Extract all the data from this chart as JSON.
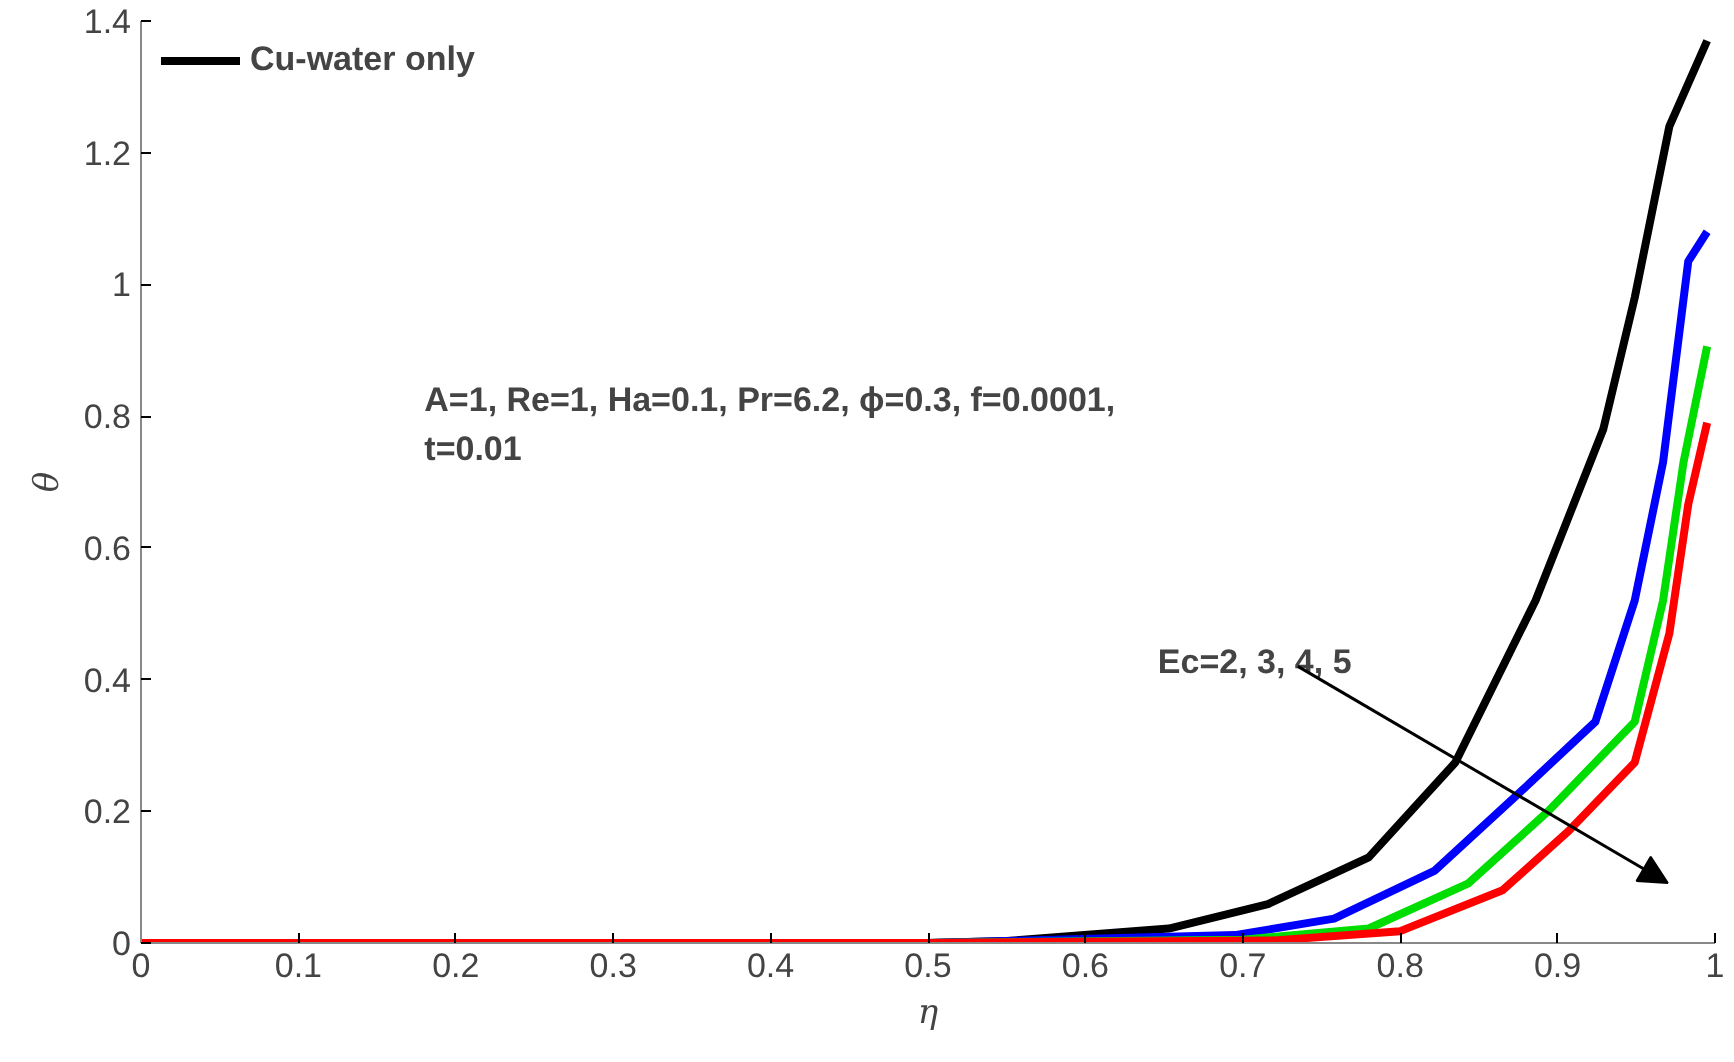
{
  "chart_data": {
    "type": "line",
    "xlabel": "η",
    "ylabel": "θ",
    "xlim": [
      0,
      1
    ],
    "ylim": [
      0,
      1.4
    ],
    "xticks": [
      0,
      0.1,
      0.2,
      0.3,
      0.4,
      0.5,
      0.6,
      0.7,
      0.8,
      0.9,
      1
    ],
    "yticks": [
      0,
      0.2,
      0.4,
      0.6,
      0.8,
      1,
      1.2,
      1.4
    ],
    "grid": false,
    "legend": "top left",
    "marker": "none",
    "line_style": "solid",
    "annotations": [
      "A=1, Re=1, Ha=0.1, Pr=6.2,  ϕ=0.3, f=0.0001,\nt=0.01",
      "Ec=2, 3, 4, 5"
    ],
    "series": [
      {
        "name": "Cu-water only",
        "color": "#000000",
        "x": [
          0,
          0.5,
          0.55,
          0.653,
          0.716,
          0.78,
          0.835,
          0.886,
          0.929,
          0.949,
          0.971,
          0.995
        ],
        "values": [
          0,
          0,
          0.003,
          0.022,
          0.059,
          0.13,
          0.274,
          0.52,
          0.78,
          0.98,
          1.24,
          1.37
        ]
      },
      {
        "color": "#0000ff",
        "x": [
          0,
          0.5,
          0.695,
          0.758,
          0.822,
          0.873,
          0.924,
          0.949,
          0.967,
          0.983,
          0.995
        ],
        "values": [
          0,
          0,
          0.012,
          0.037,
          0.11,
          0.222,
          0.336,
          0.52,
          0.73,
          1.035,
          1.08
        ]
      },
      {
        "color": "#00dd00",
        "x": [
          0,
          0.5,
          0.7,
          0.78,
          0.843,
          0.894,
          0.949,
          0.967,
          0.98,
          0.995
        ],
        "values": [
          0,
          0,
          0.005,
          0.022,
          0.09,
          0.2,
          0.336,
          0.52,
          0.73,
          0.906
        ]
      },
      {
        "color": "#ff0000",
        "x": [
          0,
          0.5,
          0.72,
          0.8,
          0.865,
          0.907,
          0.949,
          0.971,
          0.983,
          0.995
        ],
        "values": [
          0,
          0,
          0.004,
          0.018,
          0.08,
          0.17,
          0.274,
          0.47,
          0.666,
          0.79
        ]
      }
    ]
  }
}
